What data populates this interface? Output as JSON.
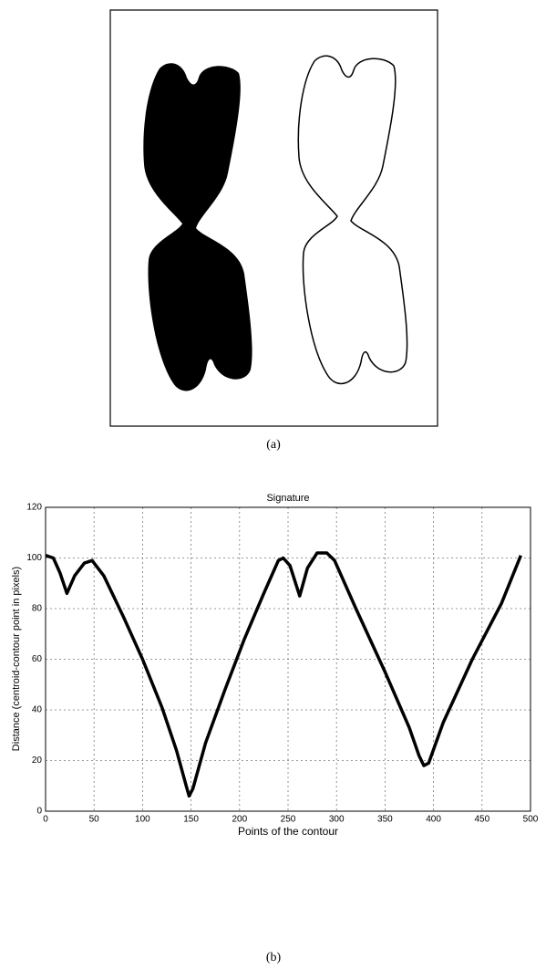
{
  "captions": [
    "(a)",
    "(b)"
  ],
  "chart_data": {
    "type": "line",
    "title": "Signature",
    "x_label": "Points of the contour",
    "y_label": "Distance (centroid-contour point in pixels)",
    "xlim": [
      0,
      500
    ],
    "xticks": [
      0,
      50,
      100,
      150,
      200,
      250,
      300,
      350,
      400,
      450,
      500
    ],
    "ylim": [
      0,
      120
    ],
    "yticks": [
      0,
      20,
      40,
      60,
      80,
      100,
      120
    ],
    "grid": true,
    "x": [
      0,
      8,
      15,
      22,
      30,
      40,
      48,
      60,
      80,
      100,
      120,
      135,
      145,
      148,
      152,
      165,
      185,
      205,
      225,
      240,
      245,
      252,
      262,
      270,
      280,
      290,
      298,
      320,
      350,
      375,
      385,
      390,
      395,
      410,
      440,
      470,
      490
    ],
    "series": [
      {
        "color": "#000000",
        "values": [
          101,
          100,
          94,
          86,
          93,
          98,
          99,
          93,
          77,
          60,
          41,
          24,
          10,
          6,
          9,
          27,
          48,
          68,
          86,
          99,
          100,
          97,
          85,
          96,
          102,
          102,
          99,
          80,
          55,
          33,
          22,
          18,
          19,
          35,
          60,
          82,
          101
        ]
      }
    ]
  }
}
